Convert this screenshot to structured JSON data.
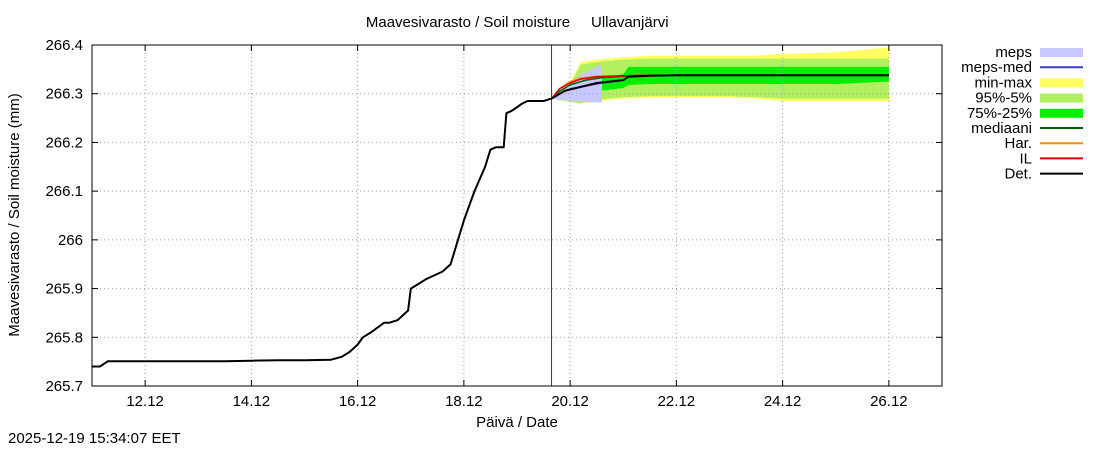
{
  "chart_data": {
    "type": "line",
    "title": "Maavesivarasto / Soil moisture",
    "location": "Ullavanjärvi",
    "xlabel": "Päivä / Date",
    "ylabel": "Maavesivarasto / Soil moisture (mm)",
    "x_unit": "days since 11.12 00:00",
    "xlim": [
      -1,
      15
    ],
    "ylim": [
      265.7,
      266.4
    ],
    "grid": true,
    "legend_position": "right",
    "x_ticks": [
      {
        "x": 0,
        "label": "12.12"
      },
      {
        "x": 2,
        "label": "14.12"
      },
      {
        "x": 4,
        "label": "16.12"
      },
      {
        "x": 6,
        "label": "18.12"
      },
      {
        "x": 8,
        "label": "20.12"
      },
      {
        "x": 10,
        "label": "22.12"
      },
      {
        "x": 12,
        "label": "24.12"
      },
      {
        "x": 14,
        "label": "26.12"
      }
    ],
    "y_ticks": [
      {
        "y": 265.7,
        "label": "265.7"
      },
      {
        "y": 265.8,
        "label": "265.8"
      },
      {
        "y": 265.9,
        "label": "265.9"
      },
      {
        "y": 266.0,
        "label": "266"
      },
      {
        "y": 266.1,
        "label": "266.1"
      },
      {
        "y": 266.2,
        "label": "266.2"
      },
      {
        "y": 266.3,
        "label": "266.3"
      },
      {
        "y": 266.4,
        "label": "266.4"
      }
    ],
    "forecast_start_x": 7.65,
    "legend": [
      {
        "key": "meps",
        "label": "meps",
        "color": "#c8c8ff",
        "style": "band"
      },
      {
        "key": "meps_med",
        "label": "meps-med",
        "color": "#3c3cc8",
        "style": "line"
      },
      {
        "key": "minmax",
        "label": "min-max",
        "color": "#ffff60",
        "style": "band"
      },
      {
        "key": "p95_5",
        "label": "95%-5%",
        "color": "#b0f060",
        "style": "band"
      },
      {
        "key": "p75_25",
        "label": "75%-25%",
        "color": "#00ee00",
        "style": "band"
      },
      {
        "key": "mediaani",
        "label": "mediaani",
        "color": "#006400",
        "style": "line"
      },
      {
        "key": "har",
        "label": "Har.",
        "color": "#ff8c00",
        "style": "line"
      },
      {
        "key": "il",
        "label": "IL",
        "color": "#dd0000",
        "style": "line"
      },
      {
        "key": "det",
        "label": "Det.",
        "color": "#000000",
        "style": "line"
      }
    ],
    "series": [
      {
        "name": "Det.",
        "color": "#000000",
        "x": [
          -1.0,
          -0.85,
          -0.7,
          0.5,
          1.5,
          2.0,
          2.5,
          3.0,
          3.5,
          3.7,
          3.85,
          4.0,
          4.1,
          4.25,
          4.5,
          4.6,
          4.75,
          4.95,
          5.0,
          5.3,
          5.5,
          5.6,
          5.75,
          6.0,
          6.2,
          6.4,
          6.5,
          6.6,
          6.75,
          6.8,
          6.9,
          7.1,
          7.2,
          7.5,
          7.65,
          7.9,
          8.2,
          8.5,
          9.0,
          9.1,
          9.5,
          10,
          11,
          12,
          13,
          14
        ],
        "y": [
          265.74,
          265.74,
          265.751,
          265.751,
          265.751,
          265.752,
          265.753,
          265.753,
          265.754,
          265.76,
          265.77,
          265.785,
          265.8,
          265.81,
          265.83,
          265.83,
          265.835,
          265.855,
          265.9,
          265.92,
          265.93,
          265.935,
          265.95,
          266.04,
          266.1,
          266.15,
          266.185,
          266.19,
          266.19,
          266.26,
          266.265,
          266.28,
          266.285,
          266.285,
          266.29,
          266.306,
          266.314,
          266.322,
          266.328,
          266.335,
          266.337,
          266.338,
          266.338,
          266.338,
          266.338,
          266.338
        ]
      },
      {
        "name": "IL",
        "color": "#dd0000",
        "x": [
          7.65,
          7.8,
          8.0,
          8.2,
          8.5,
          9.0,
          9.5,
          10,
          11,
          12,
          13,
          14
        ],
        "y": [
          266.29,
          266.31,
          266.322,
          266.33,
          266.335,
          266.337,
          266.338,
          266.338,
          266.338,
          266.338,
          266.338,
          266.338
        ]
      },
      {
        "name": "Har.",
        "color": "#ff8c00",
        "x": [
          7.65,
          7.8,
          8.0,
          8.2,
          8.5,
          9.0,
          9.5,
          10,
          11,
          12,
          13,
          14
        ],
        "y": [
          266.29,
          266.31,
          266.325,
          266.332,
          266.336,
          266.337,
          266.338,
          266.338,
          266.338,
          266.338,
          266.338,
          266.338
        ]
      },
      {
        "name": "mediaani",
        "color": "#006400",
        "x": [
          7.65,
          7.8,
          8.0,
          8.3,
          8.6,
          9.0,
          9.5,
          10,
          11,
          12,
          13,
          14
        ],
        "y": [
          266.29,
          266.305,
          266.318,
          266.328,
          266.333,
          266.336,
          266.338,
          266.338,
          266.338,
          266.338,
          266.338,
          266.338
        ]
      },
      {
        "name": "meps-med",
        "color": "#3c3cc8",
        "x": [
          7.65,
          7.8,
          8.0,
          8.3,
          8.6,
          9.0
        ],
        "y": [
          266.29,
          266.3,
          266.31,
          266.316,
          266.322,
          266.328
        ]
      }
    ],
    "bands": [
      {
        "name": "min-max",
        "color": "#ffff60",
        "x": [
          7.65,
          7.9,
          8.2,
          8.5,
          9.0,
          9.5,
          10,
          11,
          11.5,
          12,
          12.5,
          13,
          13.5,
          14
        ],
        "low": [
          266.29,
          266.285,
          266.28,
          266.285,
          266.29,
          266.292,
          266.292,
          266.292,
          266.29,
          266.285,
          266.285,
          266.285,
          266.285,
          266.285
        ],
        "high": [
          266.29,
          266.3,
          266.365,
          266.37,
          266.375,
          266.378,
          266.378,
          266.378,
          266.378,
          266.382,
          266.383,
          266.385,
          266.39,
          266.395
        ]
      },
      {
        "name": "95%-5%",
        "color": "#b0f060",
        "x": [
          7.65,
          7.9,
          8.2,
          8.5,
          9.0,
          9.5,
          10,
          11,
          12,
          13,
          14
        ],
        "low": [
          266.29,
          266.285,
          266.28,
          266.288,
          266.293,
          266.295,
          266.295,
          266.295,
          266.29,
          266.29,
          266.29
        ],
        "high": [
          266.29,
          266.298,
          266.36,
          266.365,
          266.37,
          266.372,
          266.372,
          266.372,
          266.372,
          266.372,
          266.372
        ]
      },
      {
        "name": "75%-25%",
        "color": "#00ee00",
        "x": [
          7.65,
          7.9,
          8.2,
          8.5,
          9.0,
          9.1,
          9.5,
          10,
          11,
          12,
          13,
          14
        ],
        "low": [
          266.29,
          266.3,
          266.3,
          266.305,
          266.312,
          266.318,
          266.32,
          266.32,
          266.32,
          266.32,
          266.32,
          266.325
        ],
        "high": [
          266.29,
          266.305,
          266.32,
          266.33,
          266.34,
          266.355,
          266.355,
          266.355,
          266.355,
          266.355,
          266.355,
          266.355
        ]
      },
      {
        "name": "meps",
        "color": "#c8c8ff",
        "x": [
          7.65,
          7.8,
          8.0,
          8.2,
          8.4,
          8.6
        ],
        "low": [
          266.29,
          266.288,
          266.285,
          266.283,
          266.282,
          266.283
        ],
        "high": [
          266.29,
          266.3,
          266.32,
          266.34,
          266.35,
          266.36
        ]
      }
    ]
  },
  "footer": {
    "timestamp": "2025-12-19 15:34:07 EET"
  }
}
